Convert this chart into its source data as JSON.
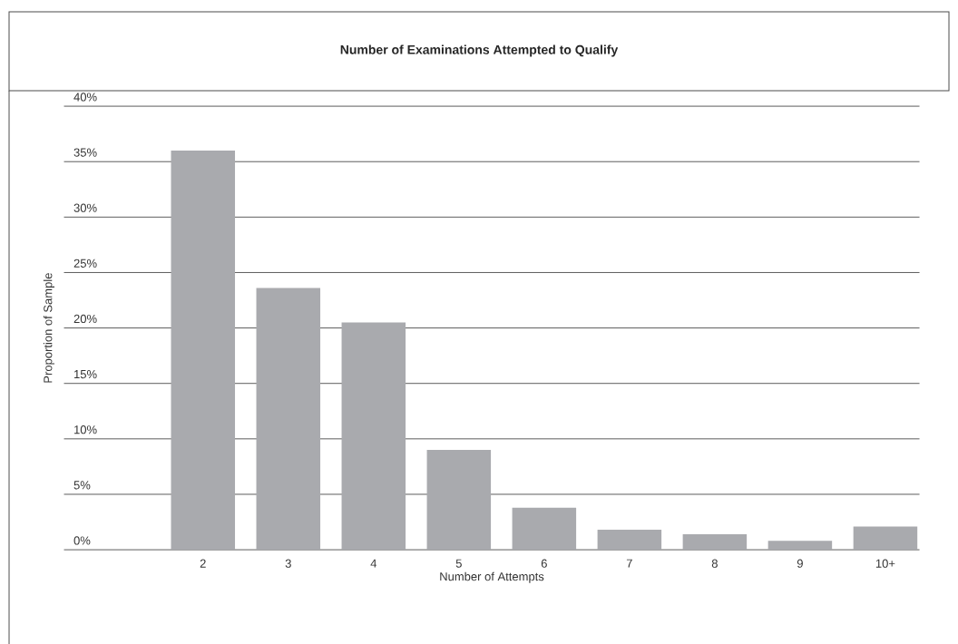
{
  "chart_data": {
    "type": "bar",
    "title": "Number of Examinations Attempted to Qualify",
    "xlabel": "Number of Attempts",
    "ylabel": "Proportion of Sample",
    "categories": [
      "2",
      "3",
      "4",
      "5",
      "6",
      "7",
      "8",
      "9",
      "10+"
    ],
    "values": [
      36,
      23.6,
      20.5,
      9,
      3.8,
      1.8,
      1.4,
      0.8,
      2.1
    ],
    "color": "#a9aaae",
    "ylim": [
      0,
      40
    ],
    "yticks": [
      {
        "value": 0,
        "label": "0%"
      },
      {
        "value": 5,
        "label": "5%"
      },
      {
        "value": 10,
        "label": "10%"
      },
      {
        "value": 15,
        "label": "15%"
      },
      {
        "value": 20,
        "label": "20%"
      },
      {
        "value": 25,
        "label": "25%"
      },
      {
        "value": 30,
        "label": "30%"
      },
      {
        "value": 35,
        "label": "35%"
      },
      {
        "value": 40,
        "label": "40%"
      }
    ],
    "grid": "y"
  }
}
